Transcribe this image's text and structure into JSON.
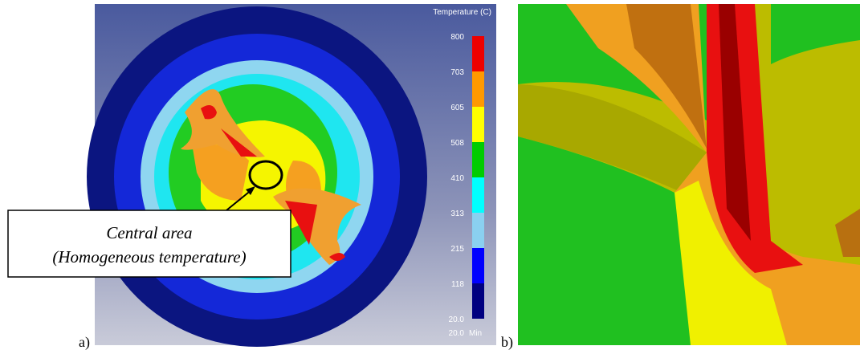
{
  "panel_a": {
    "label": "a)",
    "legend": {
      "title": "Temperature (C)",
      "ticks": [
        "800",
        "703",
        "605",
        "508",
        "410",
        "313",
        "215",
        "118",
        "20.0"
      ],
      "min_value": "20.0",
      "min_text": "Min"
    },
    "callout": {
      "line1": "Central area",
      "line2": "(Homogeneous temperature)"
    }
  },
  "panel_b": {
    "label": "b)"
  }
}
